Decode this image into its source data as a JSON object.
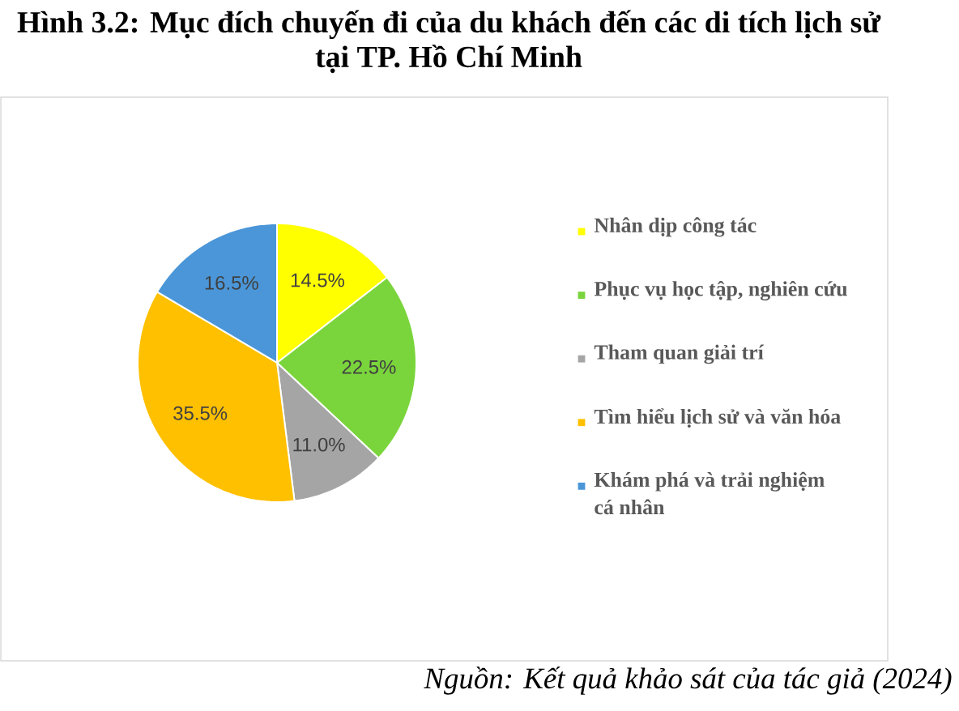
{
  "chart_data": {
    "type": "pie",
    "title": "Hình 3.2: Mục đích chuyến đi của du khách đến các di tích lịch sử tại TP. Hồ Chí Minh",
    "categories": [
      "Nhân dịp công tác",
      "Phục vụ học tập, nghiên cứu",
      "Tham quan giải trí",
      "Tìm hiểu lịch sử và văn hóa",
      "Khám phá và trải nghiệm cá nhân"
    ],
    "values": [
      14.5,
      22.5,
      11.0,
      35.5,
      16.5
    ],
    "colors": [
      "#ffff00",
      "#7ad53c",
      "#a5a5a5",
      "#ffc000",
      "#4a96d8"
    ],
    "value_labels": [
      "14.5%",
      "22.5%",
      "11.0%",
      "35.5%",
      "16.5%"
    ],
    "legend": "right",
    "annotations": [
      "Nguồn: Kết quả khảo sát của tác giả (2024)"
    ]
  }
}
